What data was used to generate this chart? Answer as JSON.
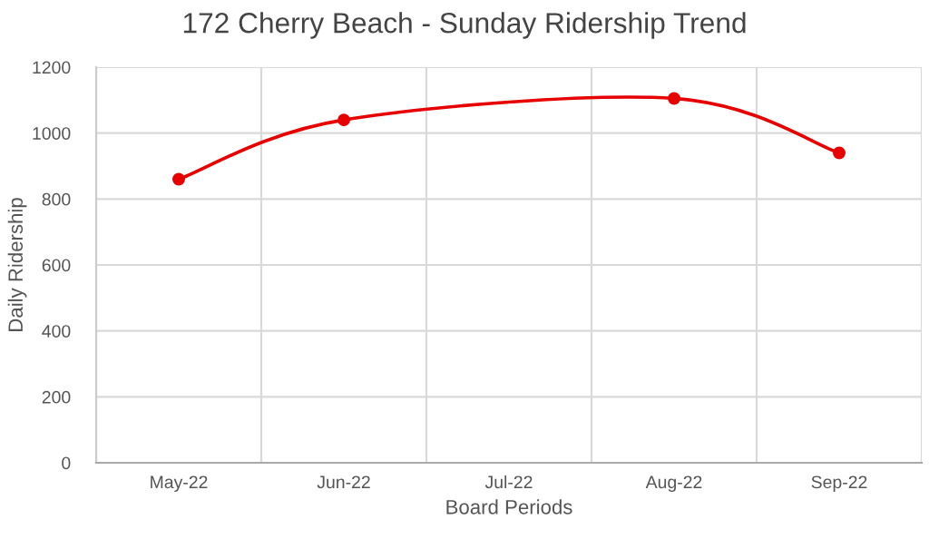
{
  "chart_data": {
    "type": "line",
    "title": "172 Cherry Beach - Sunday Ridership Trend",
    "xlabel": "Board Periods",
    "ylabel": "Daily Ridership",
    "categories": [
      "May-22",
      "Jun-22",
      "Jul-22",
      "Aug-22",
      "Sep-22"
    ],
    "series": [
      {
        "color": "#e60000",
        "values": [
          860,
          1040,
          null,
          1105,
          940
        ]
      }
    ],
    "ylim": [
      0,
      1200
    ],
    "yticks": [
      0,
      200,
      400,
      600,
      800,
      1000,
      1200
    ],
    "grid": true,
    "marker": "circle",
    "line_style": "solid"
  }
}
